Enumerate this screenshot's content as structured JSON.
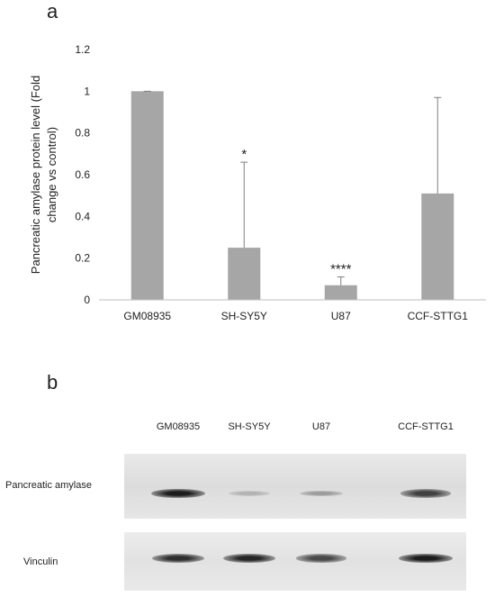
{
  "panels": {
    "a": "a",
    "b": "b"
  },
  "chart_data": {
    "type": "bar",
    "categories": [
      "GM08935",
      "SH-SY5Y",
      "U87",
      "CCF-STTG1"
    ],
    "values": [
      1.0,
      0.25,
      0.07,
      0.51
    ],
    "errors": [
      0.0,
      0.41,
      0.04,
      0.46
    ],
    "significance": [
      "",
      "*",
      "****",
      ""
    ],
    "ylabel": "Pancreatic amylase protein level (Fold change vs control)",
    "ylabel_lines": [
      "Pancreatic amylase protein level (Fold",
      "change vs control)"
    ],
    "ylim": [
      0,
      1.2
    ],
    "yticks": [
      "0",
      "0.2",
      "0.4",
      "0.6",
      "0.8",
      "1",
      "1.2"
    ],
    "bar_color": "#a6a6a6",
    "grid": false,
    "legend": "none"
  },
  "blot": {
    "lanes": [
      "GM08935",
      "SH-SY5Y",
      "U87",
      "CCF-STTG1"
    ],
    "rows": [
      {
        "label": "Pancreatic amylase",
        "intensities": [
          0.95,
          0.12,
          0.25,
          0.75
        ]
      },
      {
        "label": "Vinculin",
        "intensities": [
          0.85,
          0.9,
          0.7,
          0.95
        ]
      }
    ]
  }
}
